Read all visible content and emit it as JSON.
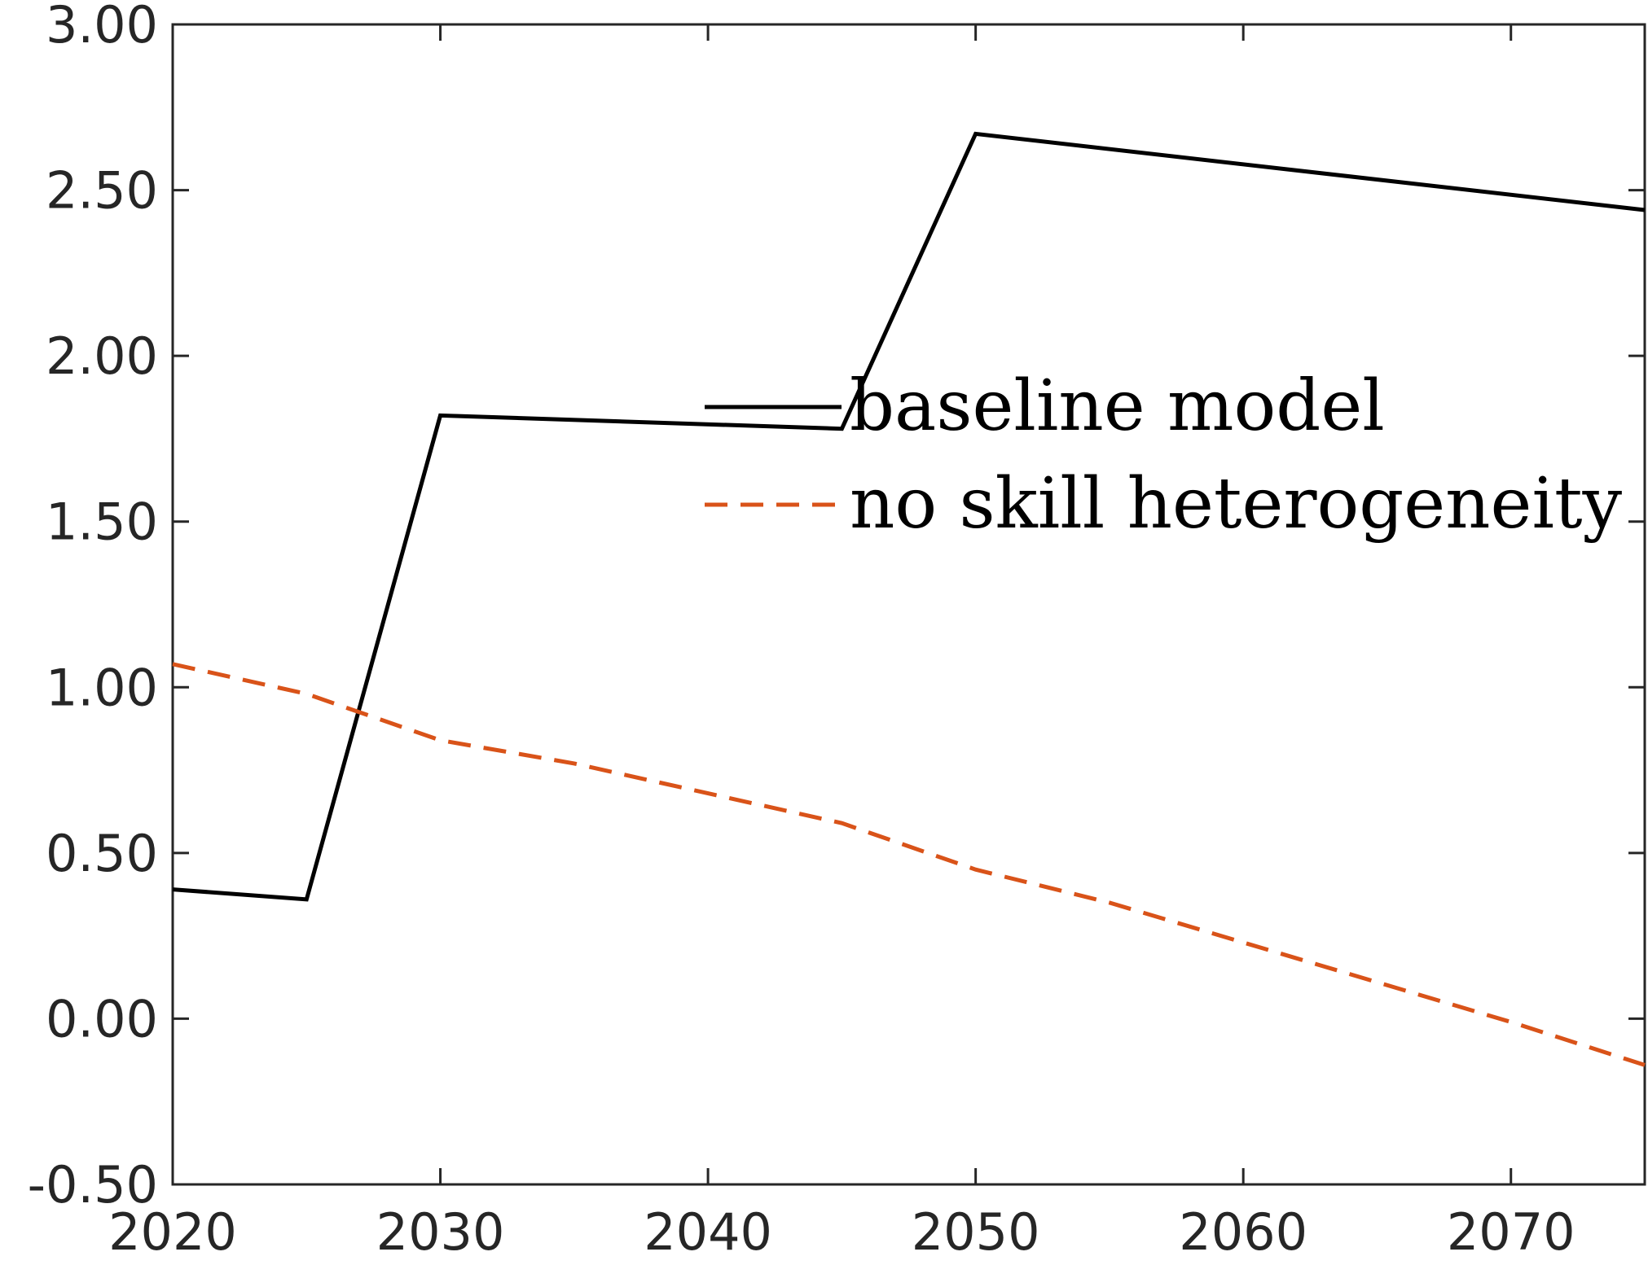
{
  "chart_data": {
    "type": "line",
    "title": "",
    "xlabel": "",
    "ylabel": "",
    "xlim": [
      2020,
      2075
    ],
    "ylim": [
      -0.5,
      3.0
    ],
    "x_ticks": [
      2020,
      2030,
      2040,
      2050,
      2060,
      2070
    ],
    "x_tick_labels": [
      "2020",
      "2030",
      "2040",
      "2050",
      "2060",
      "2070"
    ],
    "y_ticks": [
      -0.5,
      0,
      0.5,
      1.0,
      1.5,
      2.0,
      2.5,
      3.0
    ],
    "y_tick_labels": [
      "-0.50",
      "0.00",
      "0.50",
      "1.00",
      "1.50",
      "2.00",
      "2.50",
      "3.00"
    ],
    "grid": false,
    "legend_position": "center-right",
    "series": [
      {
        "name": "baseline model",
        "color": "#000000",
        "dash": "solid",
        "x": [
          2020,
          2025,
          2030,
          2045,
          2050,
          2075
        ],
        "y": [
          0.39,
          0.36,
          1.82,
          1.78,
          2.67,
          2.44
        ]
      },
      {
        "name": "no skill heterogeneity",
        "color": "#D95319",
        "dash": "dashed",
        "x": [
          2020,
          2025,
          2030,
          2035,
          2040,
          2045,
          2050,
          2055,
          2060,
          2065,
          2070,
          2075
        ],
        "y": [
          1.07,
          0.98,
          0.84,
          0.77,
          0.68,
          0.59,
          0.45,
          0.35,
          0.23,
          0.11,
          -0.01,
          -0.14
        ]
      }
    ]
  }
}
